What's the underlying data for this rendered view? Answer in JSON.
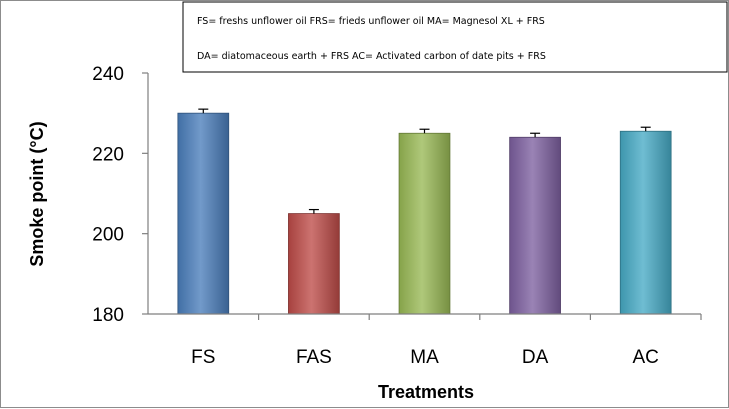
{
  "chart_data": {
    "type": "bar",
    "categories": [
      "FS",
      "FAS",
      "MA",
      "DA",
      "AC"
    ],
    "values": [
      230,
      205,
      225,
      224,
      225.5
    ],
    "errors": [
      1,
      1,
      1,
      1,
      1
    ],
    "colors": [
      "#4a7ebb",
      "#be4b48",
      "#98b954",
      "#7d60a0",
      "#46aac5"
    ],
    "title": "",
    "xlabel": "Treatments",
    "ylabel": "Smoke point (°C)",
    "ylim": [
      180,
      240
    ],
    "yticks": [
      180,
      200,
      220,
      240
    ],
    "grid": false,
    "legend_position": "top",
    "legend_lines": [
      "FS= freshs unflower oil    FRS= frieds unflower oil    MA= Magnesol XL + FRS",
      "DA= diatomaceous earth + FRS    AC= Activated carbon of date pits + FRS"
    ]
  }
}
